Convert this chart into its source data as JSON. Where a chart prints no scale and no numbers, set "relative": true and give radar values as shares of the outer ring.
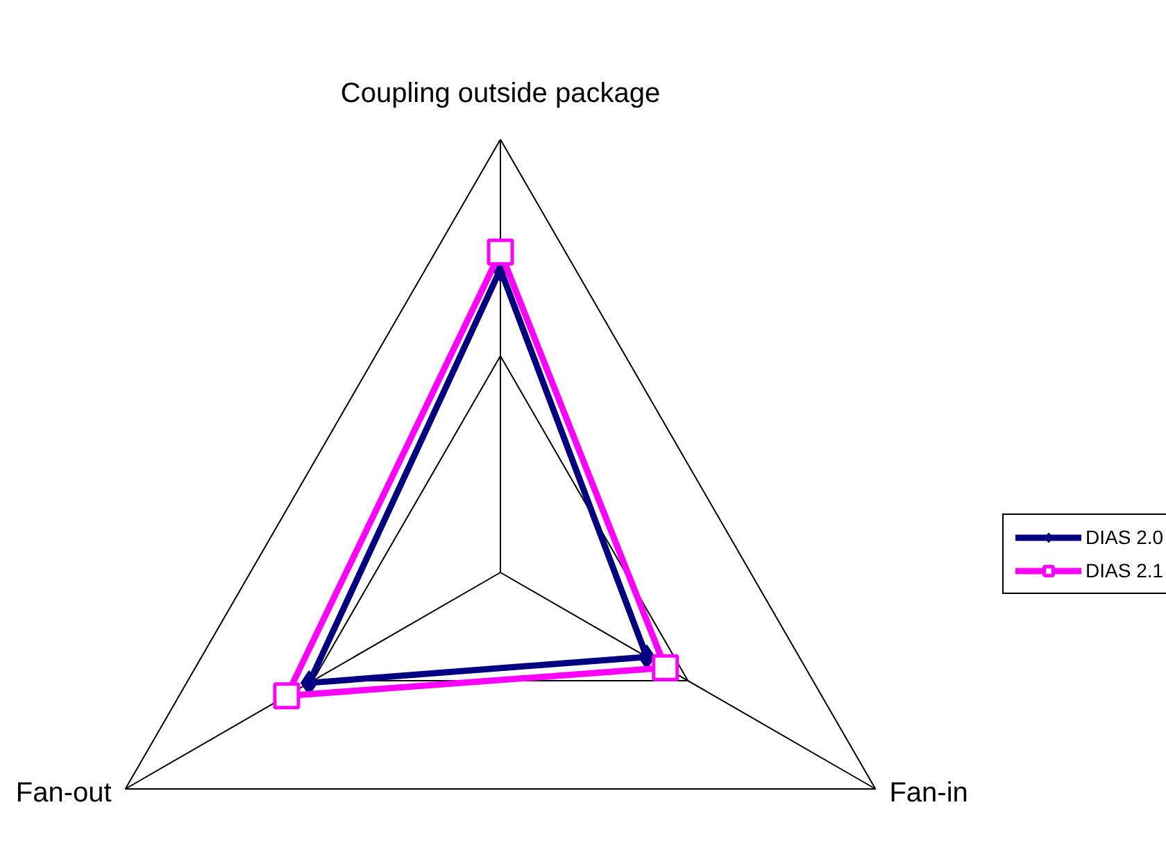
{
  "chart_data": {
    "type": "radar",
    "categories": [
      "Coupling outside package",
      "Fan-in",
      "Fan-out"
    ],
    "relative": true,
    "grid": true,
    "legend": "right",
    "line_style": "solid",
    "series": [
      {
        "name": "DIAS 2.0",
        "color": "#000080",
        "marker": "diamond",
        "values": [
          0.7,
          0.39,
          0.51
        ]
      },
      {
        "name": "DIAS 2.1",
        "color": "#ff00ff",
        "marker": "square",
        "values": [
          0.74,
          0.44,
          0.57
        ]
      }
    ]
  }
}
